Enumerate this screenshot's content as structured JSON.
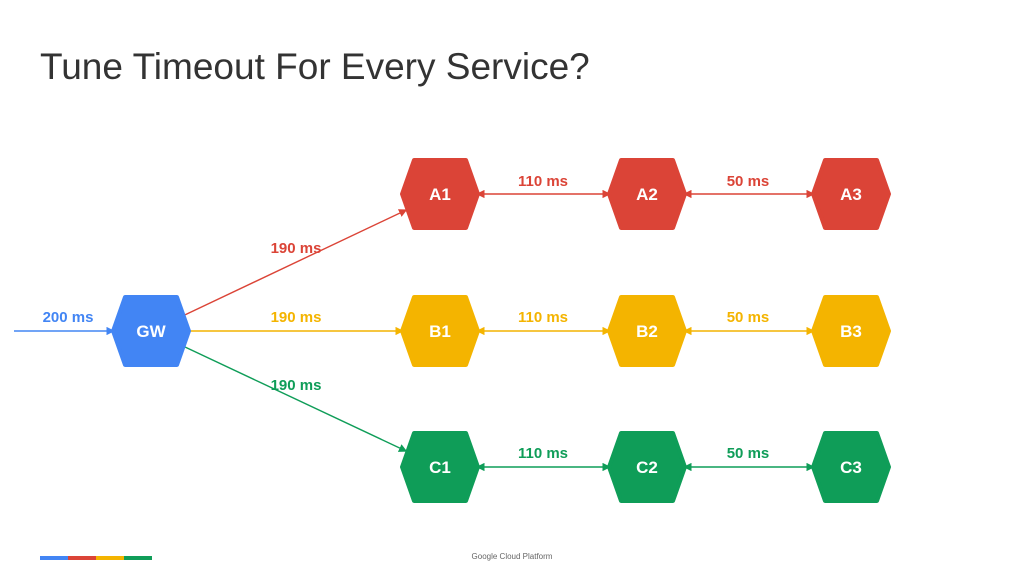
{
  "title": "Tune Timeout For Every Service?",
  "footer": "Google Cloud Platform",
  "brand_colors": [
    "#4285f4",
    "#db4437",
    "#f4b400",
    "#0f9d58"
  ],
  "nodes": [
    {
      "id": "GW",
      "label": "GW",
      "color": "#4285f4"
    },
    {
      "id": "A1",
      "label": "A1",
      "color": "#db4437"
    },
    {
      "id": "A2",
      "label": "A2",
      "color": "#db4437"
    },
    {
      "id": "A3",
      "label": "A3",
      "color": "#db4437"
    },
    {
      "id": "B1",
      "label": "B1",
      "color": "#f4b400"
    },
    {
      "id": "B2",
      "label": "B2",
      "color": "#f4b400"
    },
    {
      "id": "B3",
      "label": "B3",
      "color": "#f4b400"
    },
    {
      "id": "C1",
      "label": "C1",
      "color": "#0f9d58"
    },
    {
      "id": "C2",
      "label": "C2",
      "color": "#0f9d58"
    },
    {
      "id": "C3",
      "label": "C3",
      "color": "#0f9d58"
    }
  ],
  "edges": [
    {
      "from": "client",
      "to": "GW",
      "label": "200 ms",
      "color": "#4285f4"
    },
    {
      "from": "GW",
      "to": "A1",
      "label": "190 ms",
      "color": "#db4437"
    },
    {
      "from": "GW",
      "to": "B1",
      "label": "190 ms",
      "color": "#f4b400"
    },
    {
      "from": "GW",
      "to": "C1",
      "label": "190 ms",
      "color": "#0f9d58"
    },
    {
      "from": "A1",
      "to": "A2",
      "label": "110 ms",
      "color": "#db4437"
    },
    {
      "from": "A2",
      "to": "A3",
      "label": "50 ms",
      "color": "#db4437"
    },
    {
      "from": "B1",
      "to": "B2",
      "label": "110 ms",
      "color": "#f4b400"
    },
    {
      "from": "B2",
      "to": "B3",
      "label": "50 ms",
      "color": "#f4b400"
    },
    {
      "from": "C1",
      "to": "C2",
      "label": "110 ms",
      "color": "#0f9d58"
    },
    {
      "from": "C2",
      "to": "C3",
      "label": "50 ms",
      "color": "#0f9d58"
    }
  ]
}
